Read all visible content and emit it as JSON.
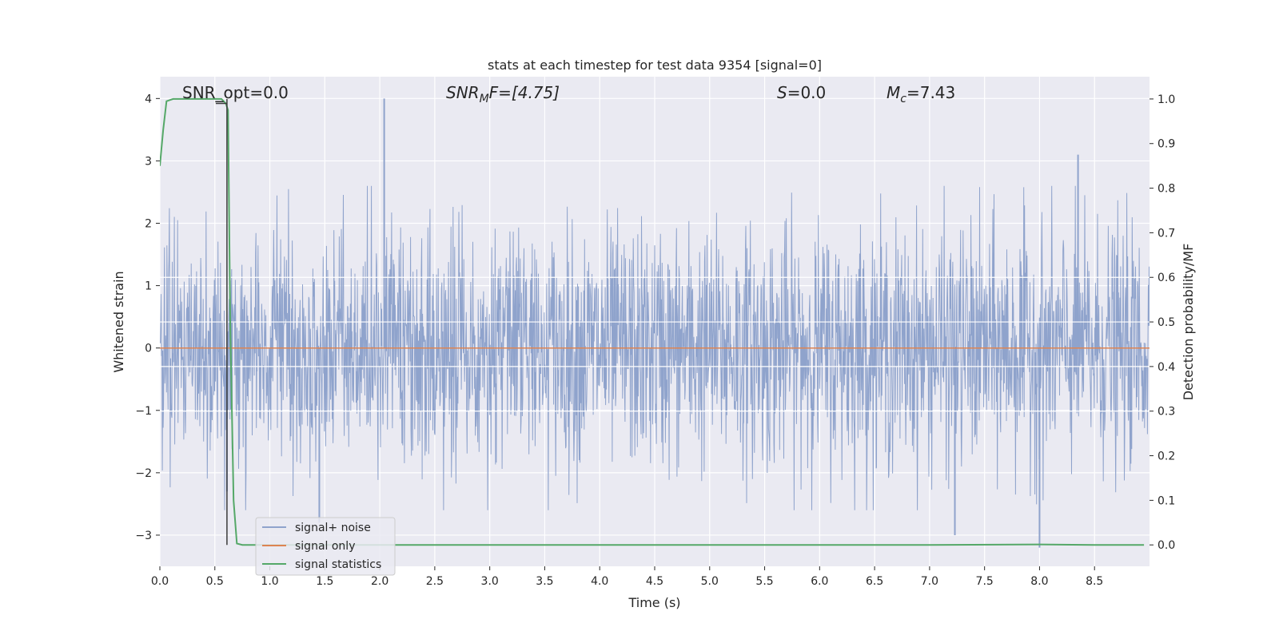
{
  "chart_data": {
    "type": "line",
    "title": "stats at each timestep for test data 9354 [signal=0]",
    "xlabel": "Time (s)",
    "ylabel_left": "Whitened strain",
    "ylabel_right": "Detection probability/MF",
    "xlim": [
      0.0,
      9.0
    ],
    "ylim_left": [
      -3.5,
      4.35
    ],
    "ylim_right": [
      -0.048,
      1.05
    ],
    "grid": true,
    "legend_position": "lower-left",
    "x_ticks": [
      "0.0",
      "0.5",
      "1.0",
      "1.5",
      "2.0",
      "2.5",
      "3.0",
      "3.5",
      "4.0",
      "4.5",
      "5.0",
      "5.5",
      "6.0",
      "6.5",
      "7.0",
      "7.5",
      "8.0",
      "8.5"
    ],
    "x_tick_values": [
      0.0,
      0.5,
      1.0,
      1.5,
      2.0,
      2.5,
      3.0,
      3.5,
      4.0,
      4.5,
      5.0,
      5.5,
      6.0,
      6.5,
      7.0,
      7.5,
      8.0,
      8.5
    ],
    "y_left_ticks": [
      "−3",
      "−2",
      "−1",
      "0",
      "1",
      "2",
      "3",
      "4"
    ],
    "y_left_tick_values": [
      -3,
      -2,
      -1,
      0,
      1,
      2,
      3,
      4
    ],
    "y_right_ticks": [
      "0.0",
      "0.1",
      "0.2",
      "0.3",
      "0.4",
      "0.5",
      "0.6",
      "0.7",
      "0.8",
      "0.9",
      "1.0"
    ],
    "y_right_tick_values": [
      0.0,
      0.1,
      0.2,
      0.3,
      0.4,
      0.5,
      0.6,
      0.7,
      0.8,
      0.9,
      1.0
    ],
    "annotations": {
      "snr_opt": "SNR_opt=0.0",
      "snr_mf_main": "SNR",
      "snr_mf_sub": "M",
      "snr_mf_rest": "F=[4.75]",
      "s_italic": "S",
      "s_rest": "=0.0",
      "mc_main": "M",
      "mc_sub": "c",
      "mc_rest": "=7.43"
    },
    "series": [
      {
        "name": "signal+ noise",
        "color": "#8fa3cc",
        "axis": "left",
        "description_range": [
          -3.3,
          4.0
        ],
        "peaks": [
          {
            "x": 2.04,
            "y": 4.0
          },
          {
            "x": 8.35,
            "y": 3.1
          },
          {
            "x": 8.0,
            "y": -3.2
          },
          {
            "x": 7.23,
            "y": -3.0
          },
          {
            "x": 0.61,
            "y": -2.3
          },
          {
            "x": 1.45,
            "y": -2.8
          }
        ]
      },
      {
        "name": "signal only",
        "color": "#dd8452",
        "axis": "left",
        "x": [
          0.0,
          9.0
        ],
        "y": [
          0.0,
          0.0
        ]
      },
      {
        "name": "signal statistics",
        "color": "#55a868",
        "axis": "right",
        "x": [
          0.0,
          0.03,
          0.06,
          0.12,
          0.2,
          0.3,
          0.4,
          0.5,
          0.56,
          0.6,
          0.62,
          0.64,
          0.67,
          0.7,
          0.75,
          1.0,
          2.0,
          3.0,
          4.0,
          5.0,
          6.0,
          7.0,
          8.0,
          8.5,
          8.95
        ],
        "y": [
          0.85,
          0.93,
          0.995,
          1.0,
          1.0,
          1.0,
          1.0,
          1.0,
          1.0,
          0.99,
          0.975,
          0.5,
          0.1,
          0.003,
          0.0,
          0.0,
          0.0,
          0.0,
          0.0,
          0.0,
          0.0,
          0.0,
          0.001,
          0.0,
          0.0
        ]
      }
    ],
    "vertical_marker": {
      "x": 0.61,
      "color": "#3a3a3a"
    }
  }
}
